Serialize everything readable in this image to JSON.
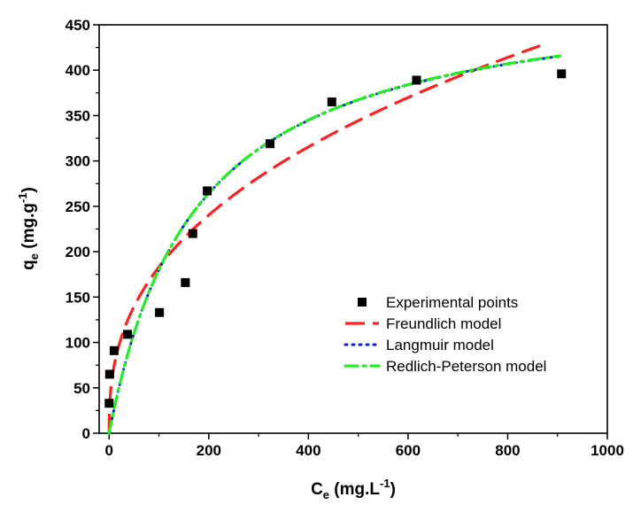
{
  "chart_data": {
    "type": "scatter",
    "xlabel": {
      "main": "C",
      "sub": "e",
      "unit_pre": " (mg.L",
      "sup": "-1",
      "unit_post": ")"
    },
    "ylabel": {
      "main": "q",
      "sub": "e",
      "unit_pre": " (mg.g",
      "sup": "-1",
      "unit_post": ")"
    },
    "xlim": [
      -20,
      1000
    ],
    "ylim": [
      0,
      450
    ],
    "xticks": [
      0,
      200,
      400,
      600,
      800,
      1000
    ],
    "yticks": [
      0,
      50,
      100,
      150,
      200,
      250,
      300,
      350,
      400,
      450
    ],
    "grid": false,
    "legend": {
      "position": "bottom-right"
    },
    "series": [
      {
        "name": "Experimental points",
        "kind": "points",
        "marker": "square",
        "color": "#000000",
        "points": [
          [
            0,
            33
          ],
          [
            1,
            65
          ],
          [
            10,
            91
          ],
          [
            37,
            109
          ],
          [
            101,
            133
          ],
          [
            153,
            166
          ],
          [
            168,
            220
          ],
          [
            197,
            267
          ],
          [
            323,
            319
          ],
          [
            447,
            365
          ],
          [
            617,
            389
          ],
          [
            908,
            396
          ]
        ]
      },
      {
        "name": "Freundlich model",
        "kind": "line",
        "dash": "long-dash",
        "color": "#ff2020",
        "model": {
          "type": "freundlich",
          "K": 30.1,
          "n": 2.55,
          "x_start": 0,
          "x_end": 880
        }
      },
      {
        "name": "Langmuir model",
        "kind": "line",
        "dash": "dot",
        "color": "#0a1ee6",
        "model": {
          "type": "langmuir",
          "qm": 496,
          "KL": 0.0057,
          "x_start": 0,
          "x_end": 905
        }
      },
      {
        "name": "Redlich-Peterson model",
        "kind": "line",
        "dash": "dash-dot",
        "color": "#22ee22",
        "model": {
          "type": "redlich_peterson",
          "K": 2.83,
          "a": 0.0057,
          "beta": 1.0,
          "x_start": 0,
          "x_end": 905
        }
      }
    ]
  }
}
